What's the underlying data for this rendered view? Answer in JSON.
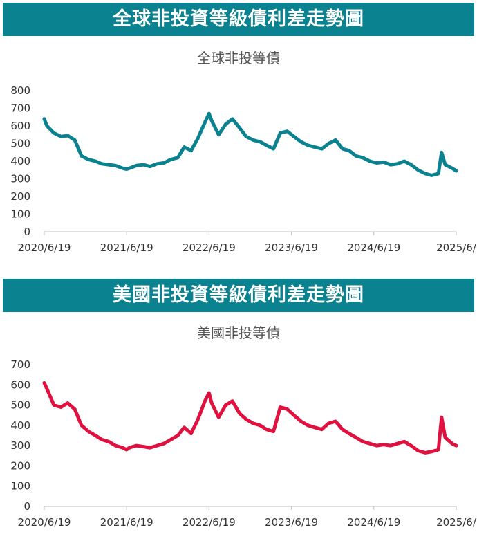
{
  "charts": [
    {
      "banner": "全球非投資等級債利差走勢圖",
      "subtitle": "全球非投等債",
      "color": "#0a8290"
    },
    {
      "banner": "美國非投資等級債利差走勢圖",
      "subtitle": "美國非投等債",
      "color": "#e0103f"
    }
  ],
  "chart_data": [
    {
      "type": "line",
      "title": "全球非投等債",
      "x_tick_labels": [
        "2020/6/19",
        "2021/6/19",
        "2022/6/19",
        "2023/6/19",
        "2024/6/19",
        "2025/6/"
      ],
      "ylim": [
        0,
        800
      ],
      "y_ticks": [
        0,
        100,
        200,
        300,
        400,
        500,
        600,
        700,
        800
      ],
      "grid": false,
      "x_start": "2020-06-19",
      "x_end": "2025-06-19",
      "series": [
        {
          "x": [
            "2020-06-19",
            "2020-07-01",
            "2020-08-01",
            "2020-09-01",
            "2020-10-01",
            "2020-11-01",
            "2020-12-01",
            "2021-01-01",
            "2021-02-01",
            "2021-03-01",
            "2021-04-01",
            "2021-05-01",
            "2021-06-01",
            "2021-06-19",
            "2021-07-01",
            "2021-08-01",
            "2021-09-01",
            "2021-10-01",
            "2021-11-01",
            "2021-12-01",
            "2022-01-01",
            "2022-02-01",
            "2022-03-01",
            "2022-04-01",
            "2022-05-01",
            "2022-06-01",
            "2022-06-19",
            "2022-07-01",
            "2022-08-01",
            "2022-09-01",
            "2022-10-01",
            "2022-11-01",
            "2022-12-01",
            "2023-01-01",
            "2023-02-01",
            "2023-03-01",
            "2023-04-01",
            "2023-05-01",
            "2023-06-01",
            "2023-07-01",
            "2023-08-01",
            "2023-09-01",
            "2023-10-01",
            "2023-11-01",
            "2023-12-01",
            "2024-01-01",
            "2024-02-01",
            "2024-03-01",
            "2024-04-01",
            "2024-05-01",
            "2024-06-01",
            "2024-07-01",
            "2024-08-01",
            "2024-09-01",
            "2024-10-01",
            "2024-11-01",
            "2024-12-01",
            "2025-01-01",
            "2025-02-01",
            "2025-03-01",
            "2025-04-01",
            "2025-04-15",
            "2025-05-01",
            "2025-06-01",
            "2025-06-19"
          ],
          "y": [
            640,
            600,
            560,
            540,
            545,
            520,
            430,
            410,
            400,
            385,
            380,
            375,
            360,
            355,
            360,
            375,
            380,
            370,
            385,
            390,
            410,
            420,
            480,
            460,
            530,
            620,
            670,
            630,
            550,
            610,
            640,
            590,
            540,
            520,
            510,
            490,
            470,
            560,
            570,
            540,
            510,
            490,
            480,
            470,
            500,
            520,
            470,
            460,
            430,
            420,
            400,
            390,
            395,
            380,
            385,
            400,
            380,
            350,
            330,
            320,
            330,
            450,
            380,
            360,
            345
          ]
        }
      ]
    },
    {
      "type": "line",
      "title": "美國非投等債",
      "x_tick_labels": [
        "2020/6/19",
        "2021/6/19",
        "2022/6/19",
        "2023/6/19",
        "2024/6/19",
        "2025/6/"
      ],
      "ylim": [
        0,
        700
      ],
      "y_ticks": [
        0,
        100,
        200,
        300,
        400,
        500,
        600,
        700
      ],
      "grid": false,
      "x_start": "2020-06-19",
      "x_end": "2025-06-19",
      "series": [
        {
          "x": [
            "2020-06-19",
            "2020-07-01",
            "2020-08-01",
            "2020-09-01",
            "2020-10-01",
            "2020-11-01",
            "2020-12-01",
            "2021-01-01",
            "2021-02-01",
            "2021-03-01",
            "2021-04-01",
            "2021-05-01",
            "2021-06-01",
            "2021-06-19",
            "2021-07-01",
            "2021-08-01",
            "2021-09-01",
            "2021-10-01",
            "2021-11-01",
            "2021-12-01",
            "2022-01-01",
            "2022-02-01",
            "2022-03-01",
            "2022-04-01",
            "2022-05-01",
            "2022-06-01",
            "2022-06-19",
            "2022-07-01",
            "2022-08-01",
            "2022-09-01",
            "2022-10-01",
            "2022-11-01",
            "2022-12-01",
            "2023-01-01",
            "2023-02-01",
            "2023-03-01",
            "2023-04-01",
            "2023-05-01",
            "2023-06-01",
            "2023-07-01",
            "2023-08-01",
            "2023-09-01",
            "2023-10-01",
            "2023-11-01",
            "2023-12-01",
            "2024-01-01",
            "2024-02-01",
            "2024-03-01",
            "2024-04-01",
            "2024-05-01",
            "2024-06-01",
            "2024-07-01",
            "2024-08-01",
            "2024-09-01",
            "2024-10-01",
            "2024-11-01",
            "2024-12-01",
            "2025-01-01",
            "2025-02-01",
            "2025-03-01",
            "2025-04-01",
            "2025-04-15",
            "2025-05-01",
            "2025-06-01",
            "2025-06-19"
          ],
          "y": [
            610,
            580,
            500,
            490,
            510,
            480,
            400,
            370,
            350,
            330,
            320,
            300,
            290,
            280,
            290,
            300,
            295,
            290,
            300,
            310,
            330,
            350,
            390,
            360,
            430,
            520,
            560,
            510,
            440,
            500,
            520,
            460,
            430,
            410,
            400,
            380,
            370,
            490,
            480,
            450,
            420,
            400,
            390,
            380,
            410,
            420,
            380,
            360,
            340,
            320,
            310,
            300,
            305,
            300,
            310,
            320,
            300,
            275,
            265,
            270,
            280,
            440,
            340,
            310,
            300
          ]
        }
      ]
    }
  ]
}
